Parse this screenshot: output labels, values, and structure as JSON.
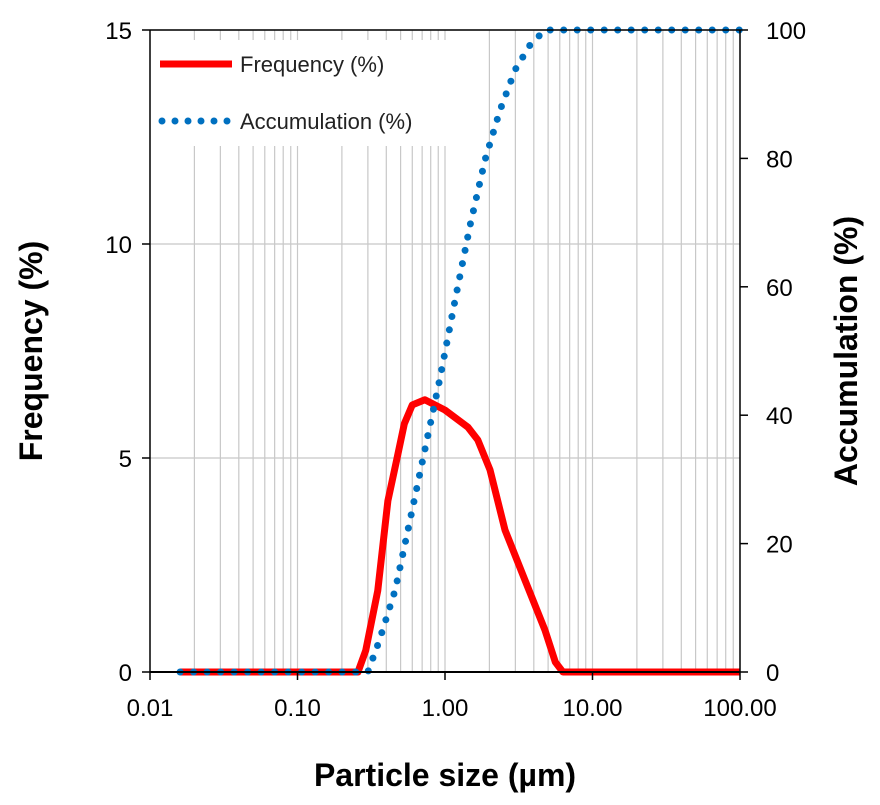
{
  "chart_data": {
    "type": "line",
    "xlabel": "Particle size (µm)",
    "ylabel": "Frequency  (%)",
    "y2label": "Accumulation (%)",
    "xscale": "log",
    "xlim": [
      0.01,
      100
    ],
    "ylim": [
      0,
      15
    ],
    "y2lim": [
      0,
      100
    ],
    "xticks": [
      "0.01",
      "0.10",
      "1.00",
      "10.00",
      "100.00"
    ],
    "yticks": [
      "0",
      "5",
      "10",
      "15"
    ],
    "y2ticks": [
      "0",
      "20",
      "40",
      "60",
      "80",
      "100"
    ],
    "grid": true,
    "legend_position": "top-left",
    "series": [
      {
        "name": "Frequency (%)",
        "axis": "left",
        "color": "#FF0000",
        "style": "solid",
        "x": [
          0.016,
          0.257,
          0.29,
          0.35,
          0.41,
          0.47,
          0.53,
          0.6,
          0.73,
          1.0,
          1.43,
          1.67,
          2.02,
          2.55,
          3.48,
          4.76,
          5.6,
          6.3,
          100
        ],
        "y": [
          0,
          0,
          0.5,
          1.9,
          4.0,
          4.95,
          5.8,
          6.24,
          6.36,
          6.12,
          5.72,
          5.42,
          4.72,
          3.32,
          2.15,
          0.98,
          0.23,
          0,
          0
        ]
      },
      {
        "name": "Accumulation (%)",
        "axis": "right",
        "color": "#0070C0",
        "style": "dotted",
        "x": [
          0.016,
          0.3,
          0.36,
          0.46,
          0.58,
          0.73,
          0.92,
          1.17,
          1.48,
          1.87,
          2.36,
          2.99,
          3.78,
          4.77,
          100
        ],
        "y": [
          0,
          0,
          5,
          12.8,
          23.7,
          34.6,
          45.5,
          57.9,
          69.6,
          79.8,
          87.5,
          93.8,
          97.7,
          100,
          100
        ]
      }
    ]
  }
}
